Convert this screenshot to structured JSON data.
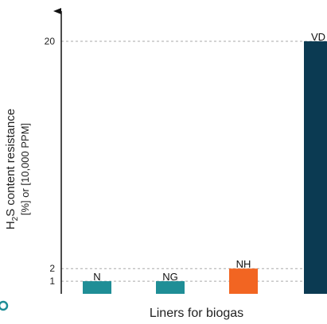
{
  "chart_data": {
    "type": "bar",
    "categories": [
      "N",
      "NG",
      "NH",
      "VD"
    ],
    "values": [
      1,
      1,
      2,
      20
    ],
    "colors": [
      "#1f8e96",
      "#1f8e96",
      "#f26522",
      "#0b3a52"
    ],
    "xlabel": "Liners for biogas",
    "ylabel": {
      "line1_prefix": "H",
      "line1_subscript": "2",
      "line1_suffix": "S content resistance",
      "line2": "[%] or [10,000 PPM]"
    },
    "yticks": [
      1,
      2,
      20
    ],
    "ylim": [
      0,
      20
    ],
    "grid": true,
    "axis_color": "#111111",
    "accent_color": "#1f8e96"
  }
}
